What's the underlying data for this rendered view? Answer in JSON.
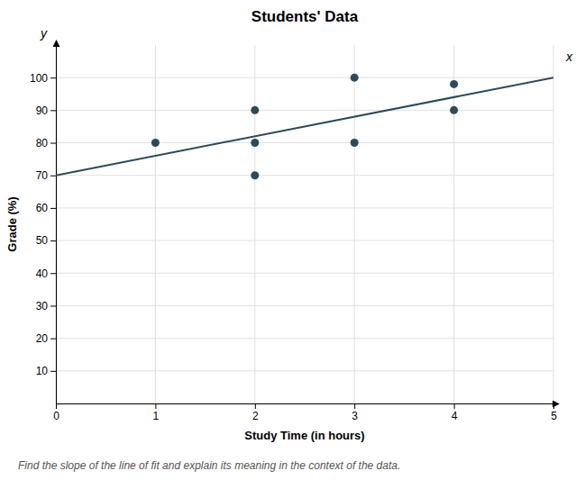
{
  "chart_data": {
    "type": "scatter",
    "title": "Students' Data",
    "x_label": "Study Time (in hours)",
    "y_label": "Grade (%)",
    "series": [
      {
        "type": "scatter",
        "color": "#2d4a5a",
        "marker": "circle",
        "x": [
          1,
          2,
          2,
          2,
          3,
          3,
          4,
          4
        ],
        "values": [
          80,
          90,
          80,
          70,
          100,
          80,
          90,
          98
        ]
      },
      {
        "type": "line",
        "color": "#2d4a5a",
        "line_style": "solid",
        "x": [
          0,
          5
        ],
        "values": [
          70,
          100
        ]
      }
    ],
    "xlim": [
      0,
      5
    ],
    "ylim": [
      0,
      110
    ],
    "xticks": [
      0,
      1,
      2,
      3,
      4,
      5
    ],
    "yticks": [
      10,
      20,
      30,
      40,
      50,
      60,
      70,
      80,
      90,
      100
    ],
    "grid": true,
    "annotations": [
      "x",
      "y",
      "Find the slope of the line of fit and explain its meaning in the context of the data."
    ]
  }
}
